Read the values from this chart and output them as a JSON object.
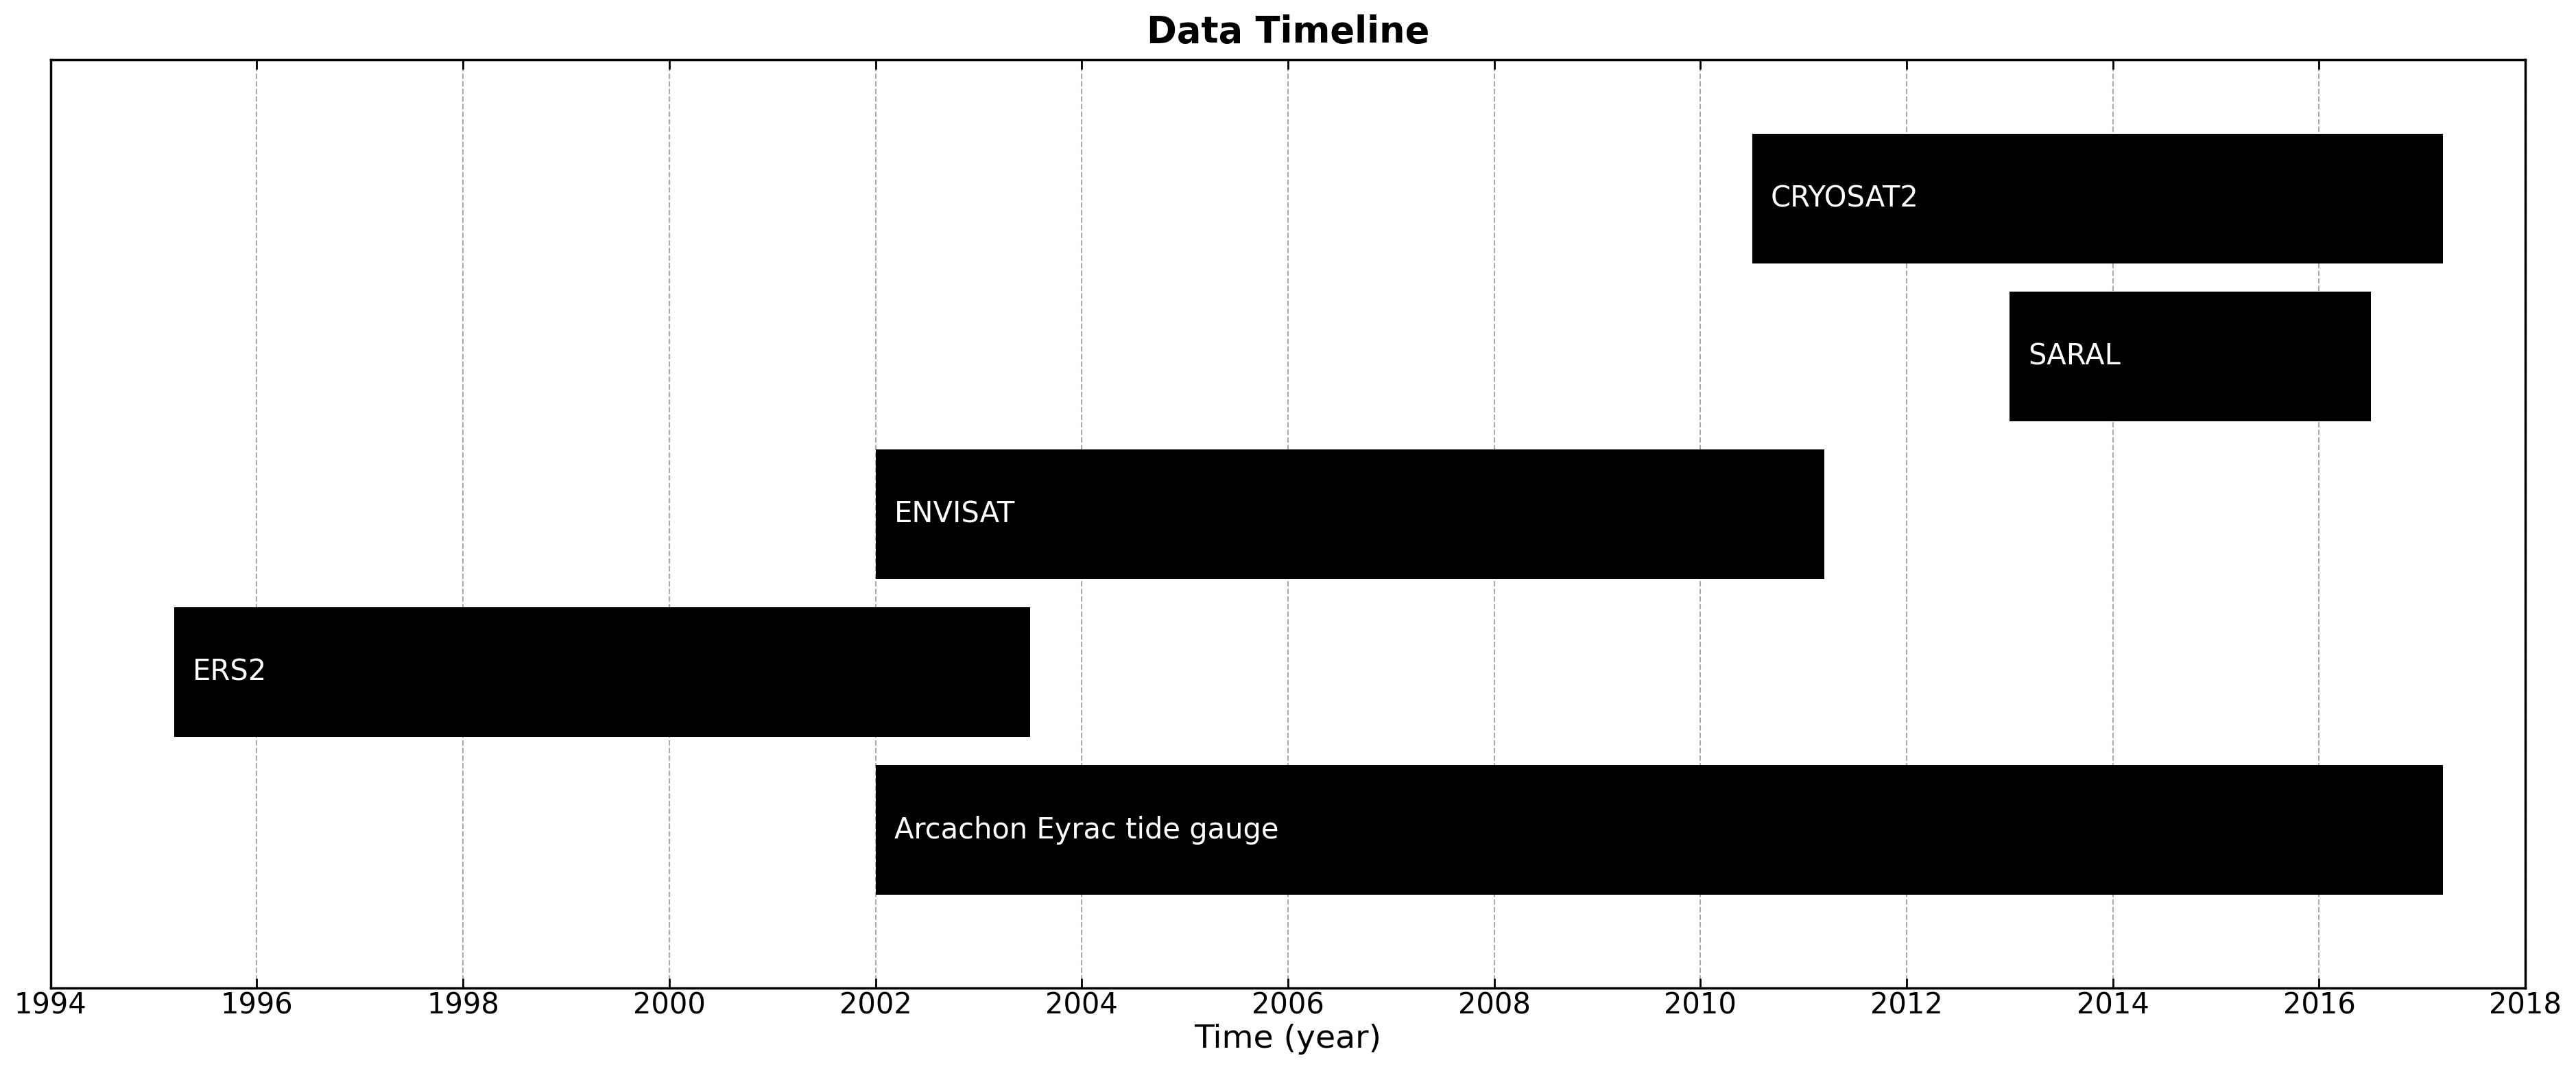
{
  "title": "Data Timeline",
  "xlabel": "Time (year)",
  "xlim": [
    1994,
    2018
  ],
  "xticks": [
    1994,
    1996,
    1998,
    2000,
    2002,
    2004,
    2006,
    2008,
    2010,
    2012,
    2014,
    2016,
    2018
  ],
  "ylim": [
    0.0,
    10.0
  ],
  "bars": [
    {
      "label": "CRYOSAT2",
      "start": 2010.5,
      "end": 2017.2,
      "y": 8.5,
      "height": 1.4,
      "bar_color": "#000000",
      "text_color": "#ffffff"
    },
    {
      "label": "SARAL",
      "start": 2013.0,
      "end": 2016.5,
      "y": 6.8,
      "height": 1.4,
      "bar_color": "#000000",
      "text_color": "#ffffff"
    },
    {
      "label": "ENVISAT",
      "start": 2002.0,
      "end": 2011.2,
      "y": 5.1,
      "height": 1.4,
      "bar_color": "#000000",
      "text_color": "#ffffff"
    },
    {
      "label": "ERS2",
      "start": 1995.2,
      "end": 2003.5,
      "y": 3.4,
      "height": 1.4,
      "bar_color": "#000000",
      "text_color": "#ffffff"
    },
    {
      "label": "Arcachon Eyrac tide gauge",
      "start": 2002.0,
      "end": 2017.2,
      "y": 1.7,
      "height": 1.4,
      "bar_color": "#000000",
      "text_color": "#ffffff"
    }
  ],
  "grid_color": "#aaaaaa",
  "grid_linestyle": "--",
  "grid_linewidth": 1.5,
  "title_fontsize": 38,
  "label_fontsize": 34,
  "tick_fontsize": 30,
  "bar_text_fontsize": 30,
  "background_color": "#ffffff",
  "spine_linewidth": 2.5
}
